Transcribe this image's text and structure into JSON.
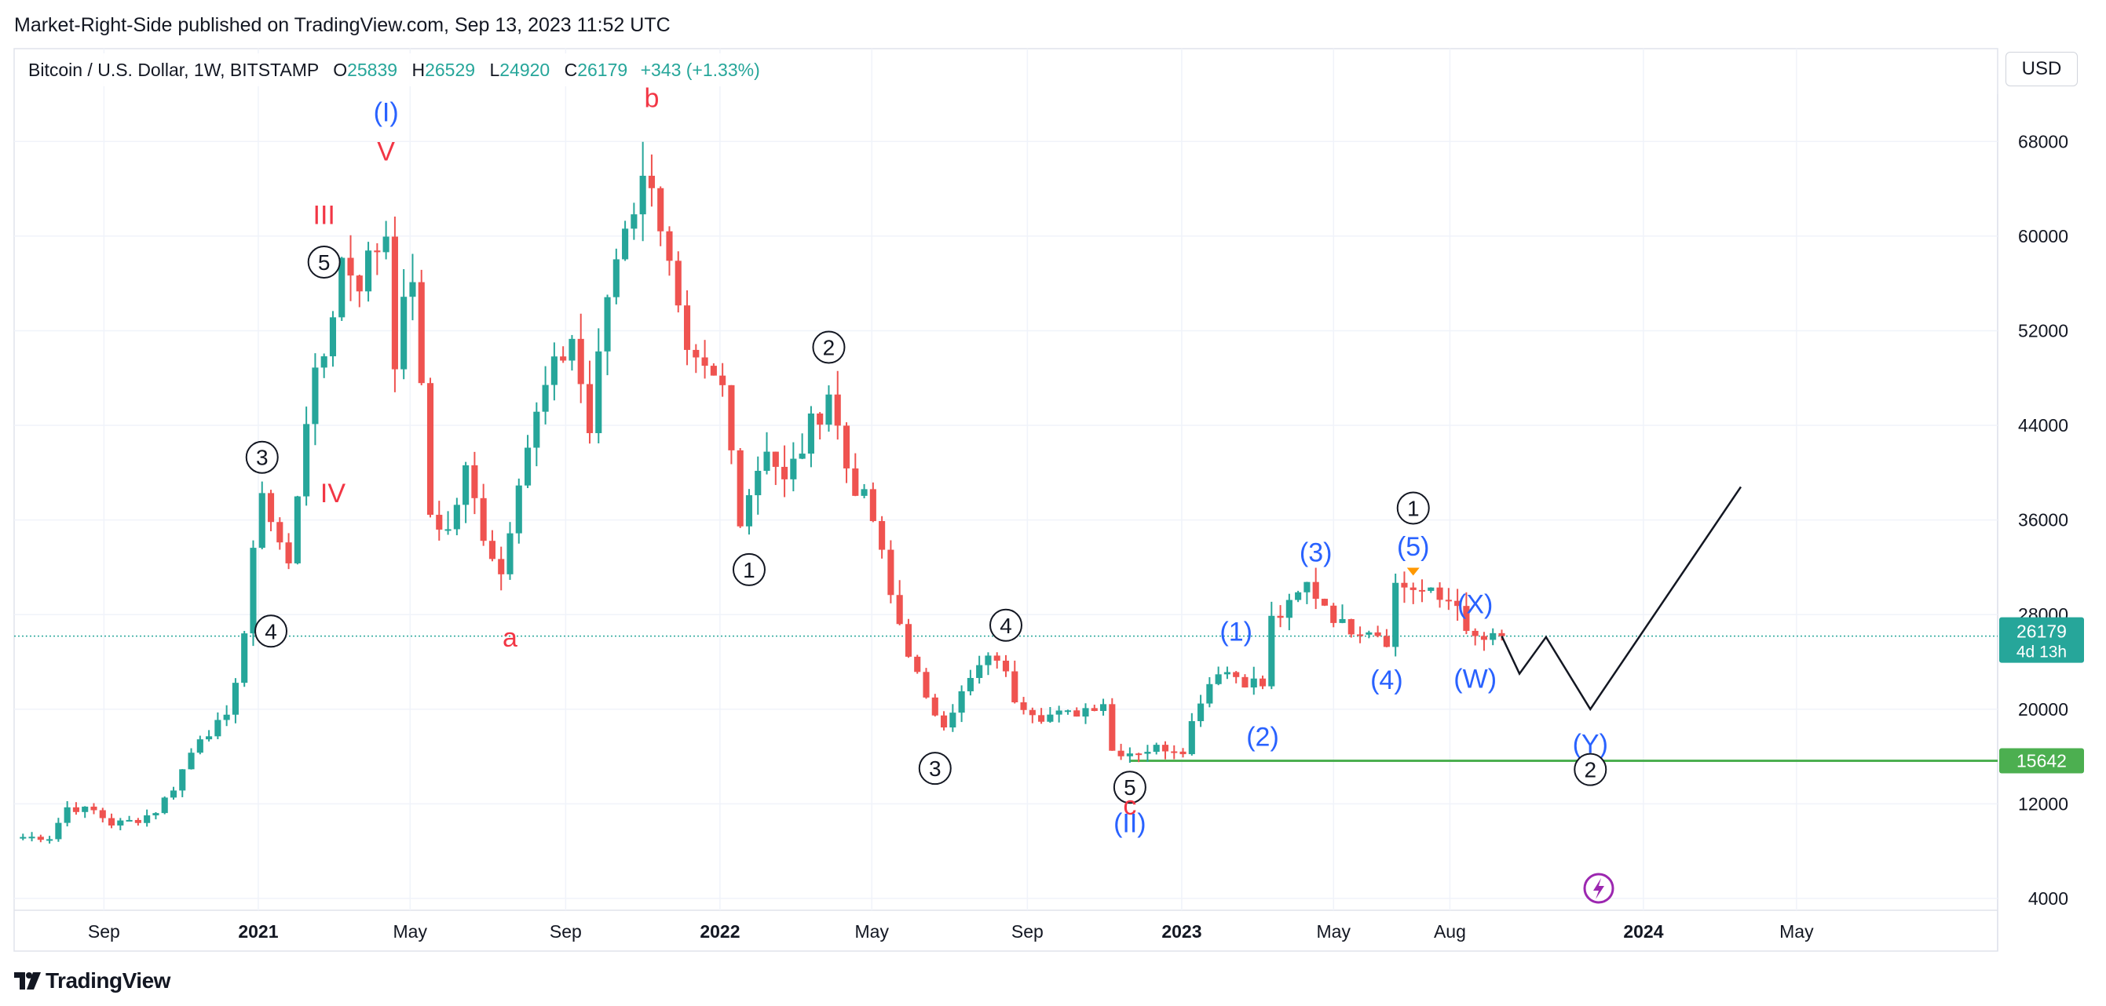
{
  "header": {
    "published_by": "Market-Right-Side published on TradingView.com, Sep 13, 2023 11:52 UTC"
  },
  "symbol_legend": {
    "name": "Bitcoin / U.S. Dollar, 1W, BITSTAMP",
    "open_label": "O",
    "open": "25839",
    "high_label": "H",
    "high": "26529",
    "low_label": "L",
    "low": "24920",
    "close_label": "C",
    "close": "26179",
    "change": "+343 (+1.33%)"
  },
  "currency_button": "USD",
  "footer": {
    "brand": "TradingView"
  },
  "colors": {
    "up": "#26a69a",
    "down": "#ef5350",
    "support": "#4caf50",
    "wave_blue": "#2962ff",
    "wave_red": "#f23645",
    "grid": "#f0f3fa"
  },
  "chart_data": {
    "type": "candlestick",
    "symbol": "BTCUSD",
    "interval": "1W",
    "x_axis": {
      "ticks": [
        "Sep",
        "2021",
        "May",
        "Sep",
        "2022",
        "May",
        "Sep",
        "2023",
        "May",
        "Aug",
        "2024",
        "May"
      ]
    },
    "y_axis": {
      "ticks": [
        68000,
        60000,
        52000,
        44000,
        36000,
        28000,
        20000,
        12000,
        4000
      ],
      "range": [
        3000,
        72000
      ]
    },
    "last_price": {
      "value": "26179",
      "countdown": "4d 13h",
      "line_value": 26179
    },
    "support_level": {
      "value": "15642",
      "line_value": 15642
    },
    "price_path": [
      [
        "2020-06-29",
        9200
      ],
      [
        "2020-07-20",
        9150
      ],
      [
        "2020-08-03",
        11700
      ],
      [
        "2020-08-24",
        11400
      ],
      [
        "2020-09-07",
        10300
      ],
      [
        "2020-09-28",
        10650
      ],
      [
        "2020-10-12",
        11400
      ],
      [
        "2020-10-26",
        13400
      ],
      [
        "2020-11-16",
        17800
      ],
      [
        "2020-12-07",
        19000
      ],
      [
        "2020-12-21",
        26500
      ],
      [
        "2021-01-04",
        39000
      ],
      [
        "2021-01-11",
        36000
      ],
      [
        "2021-01-25",
        32000
      ],
      [
        "2021-02-08",
        45000
      ],
      [
        "2021-02-22",
        50000
      ],
      [
        "2021-03-08",
        58000
      ],
      [
        "2021-03-22",
        56500
      ],
      [
        "2021-04-12",
        60500
      ],
      [
        "2021-04-19",
        50000
      ],
      [
        "2021-05-03",
        57000
      ],
      [
        "2021-05-10",
        46500
      ],
      [
        "2021-05-17",
        36500
      ],
      [
        "2021-05-31",
        35000
      ],
      [
        "2021-06-14",
        40000
      ],
      [
        "2021-06-28",
        35000
      ],
      [
        "2021-07-12",
        31500
      ],
      [
        "2021-07-26",
        40000
      ],
      [
        "2021-08-16",
        47000
      ],
      [
        "2021-09-06",
        51500
      ],
      [
        "2021-09-20",
        43500
      ],
      [
        "2021-10-04",
        55000
      ],
      [
        "2021-10-18",
        61500
      ],
      [
        "2021-11-08",
        65500
      ],
      [
        "2021-11-22",
        57000
      ],
      [
        "2021-12-06",
        49000
      ],
      [
        "2022-01-03",
        47000
      ],
      [
        "2022-01-17",
        36500
      ],
      [
        "2022-02-07",
        42500
      ],
      [
        "2022-02-21",
        39000
      ],
      [
        "2022-03-28",
        47000
      ],
      [
        "2022-04-11",
        40500
      ],
      [
        "2022-05-02",
        36000
      ],
      [
        "2022-05-16",
        29500
      ],
      [
        "2022-06-13",
        20500
      ],
      [
        "2022-06-27",
        19000
      ],
      [
        "2022-07-25",
        23500
      ],
      [
        "2022-08-08",
        24500
      ],
      [
        "2022-08-22",
        21000
      ],
      [
        "2022-09-12",
        19500
      ],
      [
        "2022-10-03",
        19500
      ],
      [
        "2022-10-31",
        20700
      ],
      [
        "2022-11-07",
        16500
      ],
      [
        "2022-11-21",
        16400
      ],
      [
        "2022-12-19",
        16800
      ],
      [
        "2023-01-02",
        16700
      ],
      [
        "2023-01-16",
        21000
      ],
      [
        "2023-01-30",
        23500
      ],
      [
        "2023-02-20",
        22500
      ],
      [
        "2023-03-06",
        22000
      ],
      [
        "2023-03-13",
        27500
      ],
      [
        "2023-03-27",
        28500
      ],
      [
        "2023-04-10",
        30500
      ],
      [
        "2023-04-24",
        29000
      ],
      [
        "2023-05-08",
        27000
      ],
      [
        "2023-05-29",
        27000
      ],
      [
        "2023-06-12",
        26000
      ],
      [
        "2023-06-19",
        30500
      ],
      [
        "2023-07-03",
        30300
      ],
      [
        "2023-07-24",
        29200
      ],
      [
        "2023-08-07",
        29400
      ],
      [
        "2023-08-14",
        26000
      ],
      [
        "2023-09-04",
        25800
      ],
      [
        "2023-09-11",
        26179
      ]
    ],
    "projection": [
      [
        "2023-09-11",
        26179
      ],
      [
        "2023-09-25",
        23000
      ],
      [
        "2023-10-16",
        26100
      ],
      [
        "2023-11-20",
        20000
      ],
      [
        "2024-03-18",
        38800
      ]
    ],
    "wave_labels": [
      {
        "text": "(I)",
        "date": "2021-04-12",
        "price": 70500,
        "color": "blue",
        "circle": false
      },
      {
        "text": "V",
        "date": "2021-04-12",
        "price": 67200,
        "color": "red",
        "circle": false
      },
      {
        "text": "III",
        "date": "2021-02-22",
        "price": 61800,
        "color": "red",
        "circle": false
      },
      {
        "text": "5",
        "date": "2021-02-22",
        "price": 57800,
        "color": "black",
        "circle": true
      },
      {
        "text": "3",
        "date": "2021-01-04",
        "price": 41300,
        "color": "black",
        "circle": true
      },
      {
        "text": "IV",
        "date": "2021-03-01",
        "price": 38300,
        "color": "red",
        "circle": false
      },
      {
        "text": "4",
        "date": "2021-01-11",
        "price": 26600,
        "color": "black",
        "circle": true
      },
      {
        "text": "b",
        "date": "2021-11-08",
        "price": 71700,
        "color": "red",
        "circle": false
      },
      {
        "text": "a",
        "date": "2021-07-19",
        "price": 26100,
        "color": "red",
        "circle": false
      },
      {
        "text": "2",
        "date": "2022-03-28",
        "price": 50600,
        "color": "black",
        "circle": true
      },
      {
        "text": "1",
        "date": "2022-01-24",
        "price": 31800,
        "color": "black",
        "circle": true
      },
      {
        "text": "4",
        "date": "2022-08-15",
        "price": 27100,
        "color": "black",
        "circle": true
      },
      {
        "text": "3",
        "date": "2022-06-20",
        "price": 15000,
        "color": "black",
        "circle": true
      },
      {
        "text": "5",
        "date": "2022-11-21",
        "price": 13400,
        "color": "black",
        "circle": true
      },
      {
        "text": "c",
        "date": "2022-11-21",
        "price": 11900,
        "color": "red",
        "circle": false
      },
      {
        "text": "(II)",
        "date": "2022-11-21",
        "price": 10400,
        "color": "blue",
        "circle": false
      },
      {
        "text": "(1)",
        "date": "2023-02-13",
        "price": 26600,
        "color": "blue",
        "circle": false
      },
      {
        "text": "(2)",
        "date": "2023-03-06",
        "price": 17700,
        "color": "blue",
        "circle": false
      },
      {
        "text": "(3)",
        "date": "2023-04-17",
        "price": 33300,
        "color": "blue",
        "circle": false
      },
      {
        "text": "(4)",
        "date": "2023-06-12",
        "price": 22500,
        "color": "blue",
        "circle": false
      },
      {
        "text": "1",
        "date": "2023-07-03",
        "price": 37000,
        "color": "black",
        "circle": true
      },
      {
        "text": "(5)",
        "date": "2023-07-03",
        "price": 33800,
        "color": "blue",
        "circle": false
      },
      {
        "text": "(X)",
        "date": "2023-08-21",
        "price": 28900,
        "color": "blue",
        "circle": false
      },
      {
        "text": "(W)",
        "date": "2023-08-21",
        "price": 22600,
        "color": "blue",
        "circle": false
      },
      {
        "text": "(Y)",
        "date": "2023-11-20",
        "price": 17100,
        "color": "blue",
        "circle": false
      },
      {
        "text": "2",
        "date": "2023-11-20",
        "price": 14900,
        "color": "black",
        "circle": true
      }
    ]
  }
}
